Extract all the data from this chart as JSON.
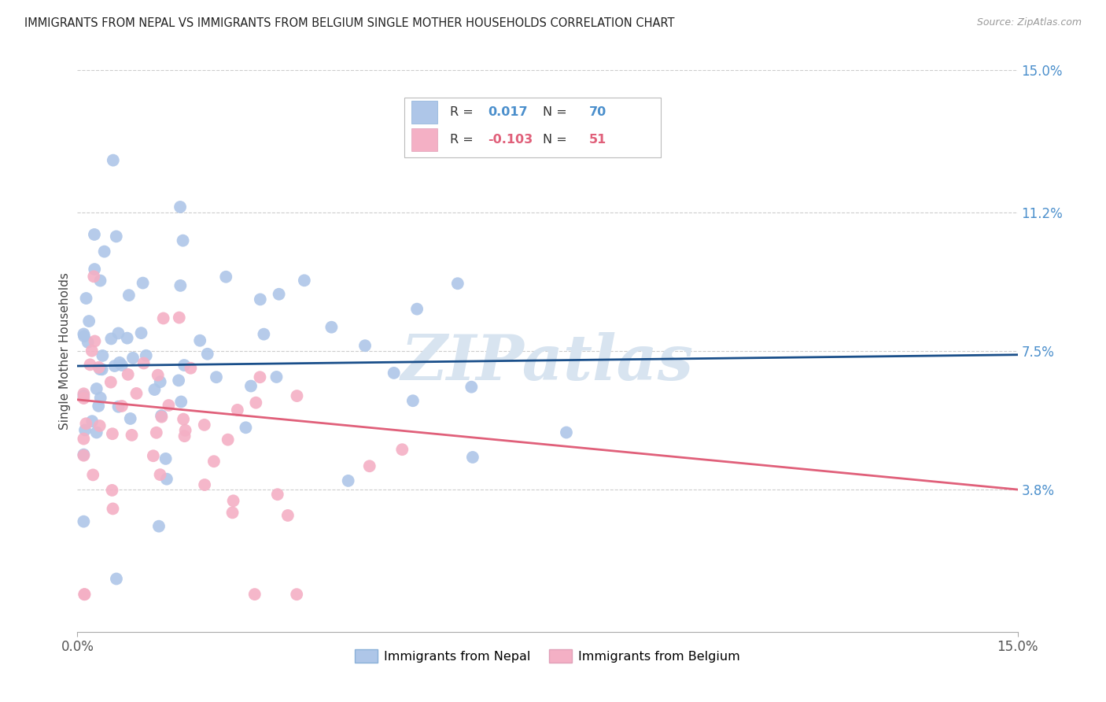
{
  "title": "IMMIGRANTS FROM NEPAL VS IMMIGRANTS FROM BELGIUM SINGLE MOTHER HOUSEHOLDS CORRELATION CHART",
  "source": "Source: ZipAtlas.com",
  "ylabel": "Single Mother Households",
  "nepal_color": "#aec6e8",
  "nepal_line_color": "#1a4f8a",
  "belgium_color": "#f4b0c5",
  "belgium_line_color": "#e0607a",
  "watermark_color": "#d8e4f0",
  "right_tick_color": "#4b8fcc",
  "nepal_r": 0.017,
  "nepal_n": 70,
  "belgium_r": -0.103,
  "belgium_n": 51,
  "xlim": [
    0.0,
    0.15
  ],
  "ylim": [
    0.0,
    0.15
  ],
  "yticks": [
    0.038,
    0.075,
    0.112,
    0.15
  ],
  "ytick_labels": [
    "3.8%",
    "7.5%",
    "11.2%",
    "15.0%"
  ],
  "xtick_labels": [
    "0.0%",
    "15.0%"
  ],
  "nepal_line_start_y": 0.071,
  "nepal_line_end_y": 0.074,
  "belgium_line_start_y": 0.062,
  "belgium_line_end_y": 0.038
}
